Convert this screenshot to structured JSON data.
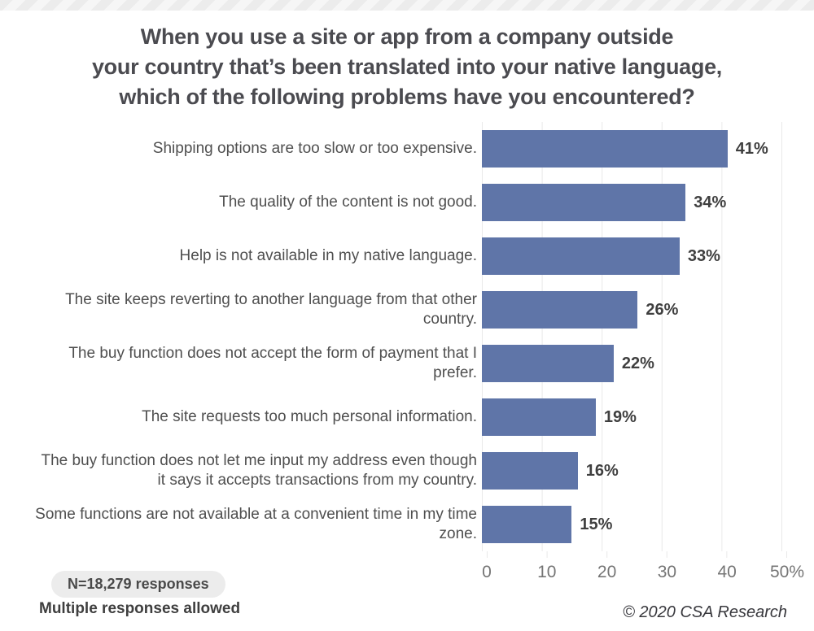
{
  "title": "When you use a site or app from a company outside\nyour country that’s been translated into your native language,\nwhich of the following problems have you encountered?",
  "chart_data": {
    "type": "bar",
    "orientation": "horizontal",
    "title": "When you use a site or app from a company outside your country that’s been translated into your native language, which of the following problems have you encountered?",
    "categories": [
      "Shipping options are too slow or too expensive.",
      "The quality of the content is not good.",
      "Help is not available in my native language.",
      "The site keeps reverting to another language from that other country.",
      "The buy function does not accept the form of payment that I prefer.",
      "The site requests too much personal information.",
      "The buy function does not let me input my address even though it says it accepts transactions from my country.",
      "Some functions are not available at a convenient time in my time zone."
    ],
    "values": [
      41,
      34,
      33,
      26,
      22,
      19,
      16,
      15
    ],
    "value_labels": [
      "41%",
      "34%",
      "33%",
      "26%",
      "22%",
      "19%",
      "16%",
      "15%"
    ],
    "xlim": [
      0,
      50
    ],
    "x_ticks": [
      "0",
      "10",
      "20",
      "30",
      "40",
      "50%"
    ],
    "grid": true,
    "legend": false,
    "bar_color": "#5f75a8"
  },
  "footer": {
    "n_badge": "N=18,279 responses",
    "note": "Multiple responses allowed",
    "credit": "© 2020 CSA Research"
  }
}
